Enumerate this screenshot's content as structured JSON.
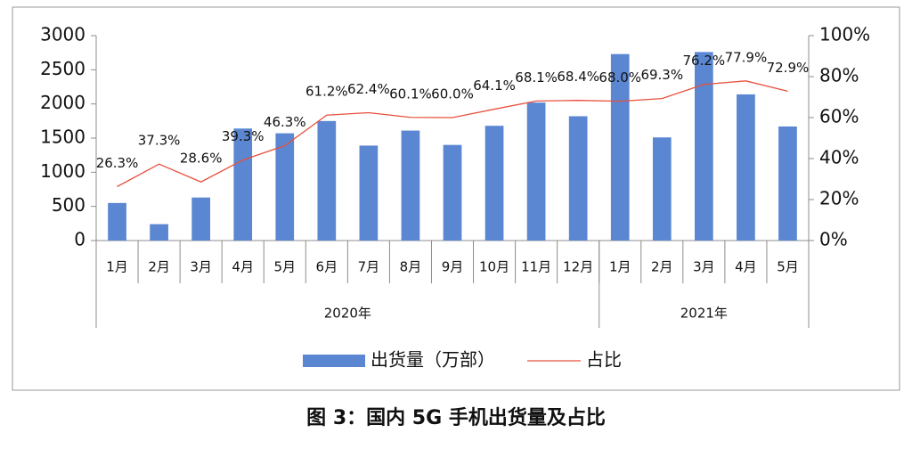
{
  "chart_data": {
    "type": "bar",
    "caption": "图 3：国内 5G 手机出货量及占比",
    "category_groups": [
      {
        "name": "2020年",
        "categories": [
          "1月",
          "2月",
          "3月",
          "4月",
          "5月",
          "6月",
          "7月",
          "8月",
          "9月",
          "10月",
          "11月",
          "12月"
        ]
      },
      {
        "name": "2021年",
        "categories": [
          "1月",
          "2月",
          "3月",
          "4月",
          "5月"
        ]
      }
    ],
    "series": [
      {
        "name": "出货量（万部）",
        "type": "bar",
        "color": "#5b87d2",
        "values": [
          550,
          240,
          630,
          1640,
          1570,
          1750,
          1390,
          1610,
          1400,
          1680,
          2020,
          1820,
          2730,
          1510,
          2760,
          2140,
          1670
        ]
      },
      {
        "name": "占比",
        "type": "line",
        "axis": "y2",
        "color": "#e8503e",
        "values": [
          26.3,
          37.3,
          28.6,
          39.3,
          46.3,
          61.2,
          62.4,
          60.1,
          60.0,
          64.1,
          68.1,
          68.4,
          68.0,
          69.3,
          76.2,
          77.9,
          72.9
        ],
        "value_labels": [
          "26.3%",
          "37.3%",
          "28.6%",
          "39.3%",
          "46.3%",
          "61.2%",
          "62.4%",
          "60.1%",
          "60.0%",
          "64.1%",
          "68.1%",
          "68.4%",
          "68.0%",
          "69.3%",
          "76.2%",
          "77.9%",
          "72.9%"
        ]
      }
    ],
    "ylim": [
      0,
      3000
    ],
    "yticks": [
      0,
      500,
      1000,
      1500,
      2000,
      2500,
      3000
    ],
    "y2lim": [
      0,
      100
    ],
    "y2ticks": [
      {
        "value": 0,
        "label": "0%"
      },
      {
        "value": 20,
        "label": "20%"
      },
      {
        "value": 40,
        "label": "40%"
      },
      {
        "value": 60,
        "label": "60%"
      },
      {
        "value": 80,
        "label": "80%"
      },
      {
        "value": 100,
        "label": "100%"
      }
    ],
    "legend": "bottom"
  }
}
